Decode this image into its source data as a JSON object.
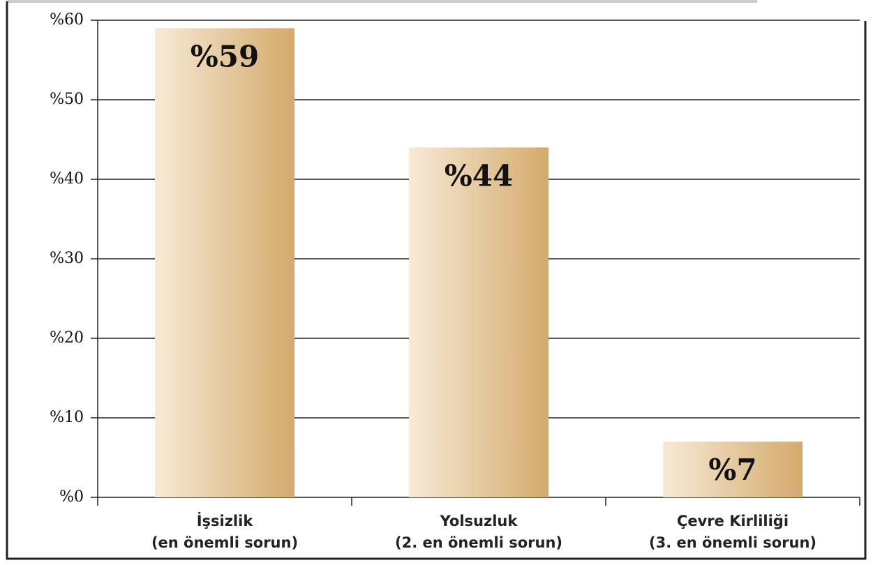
{
  "chart_data": {
    "type": "bar",
    "categories": [
      "İşsizlik\n(en önemli sorun)",
      "Yolsuzluk\n(2. en önemli sorun)",
      "Çevre Kirliliği\n(3. en önemli sorun)"
    ],
    "values": [
      59,
      44,
      7
    ],
    "value_labels": [
      "%59",
      "%44",
      "%7"
    ],
    "color": "#d4aa6c",
    "ylim": [
      0,
      60
    ],
    "yticks": [
      {
        "value": 0,
        "label": "%0"
      },
      {
        "value": 10,
        "label": "%10"
      },
      {
        "value": 20,
        "label": "%20"
      },
      {
        "value": 30,
        "label": "%30"
      },
      {
        "value": 40,
        "label": "%40"
      },
      {
        "value": 50,
        "label": "%50"
      },
      {
        "value": 60,
        "label": "%60"
      }
    ],
    "grid": true
  }
}
